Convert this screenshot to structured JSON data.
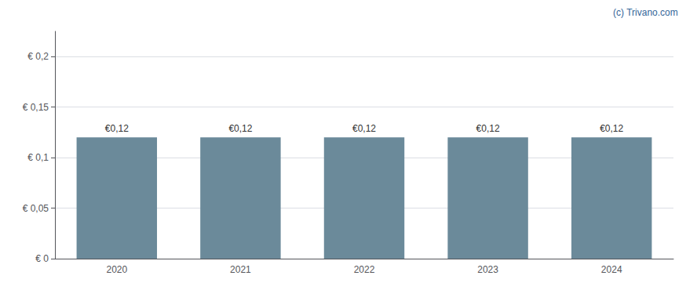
{
  "chart_data": {
    "type": "bar",
    "categories": [
      "2020",
      "2021",
      "2022",
      "2023",
      "2024"
    ],
    "values": [
      0.12,
      0.12,
      0.12,
      0.12,
      0.12
    ],
    "value_labels": [
      "€0,12",
      "€0,12",
      "€0,12",
      "€0,12",
      "€0,12"
    ],
    "data_labels": true,
    "color": "#6b8a9a",
    "ylim": [
      0,
      0.225
    ],
    "yticks": [
      {
        "value": 0,
        "label": "€ 0"
      },
      {
        "value": 0.05,
        "label": "€ 0,05"
      },
      {
        "value": 0.1,
        "label": "€ 0,1"
      },
      {
        "value": 0.15,
        "label": "€ 0,15"
      },
      {
        "value": 0.2,
        "label": "€ 0,2"
      }
    ],
    "grid": true,
    "annotations": [
      "(c) Trivano.com"
    ]
  }
}
